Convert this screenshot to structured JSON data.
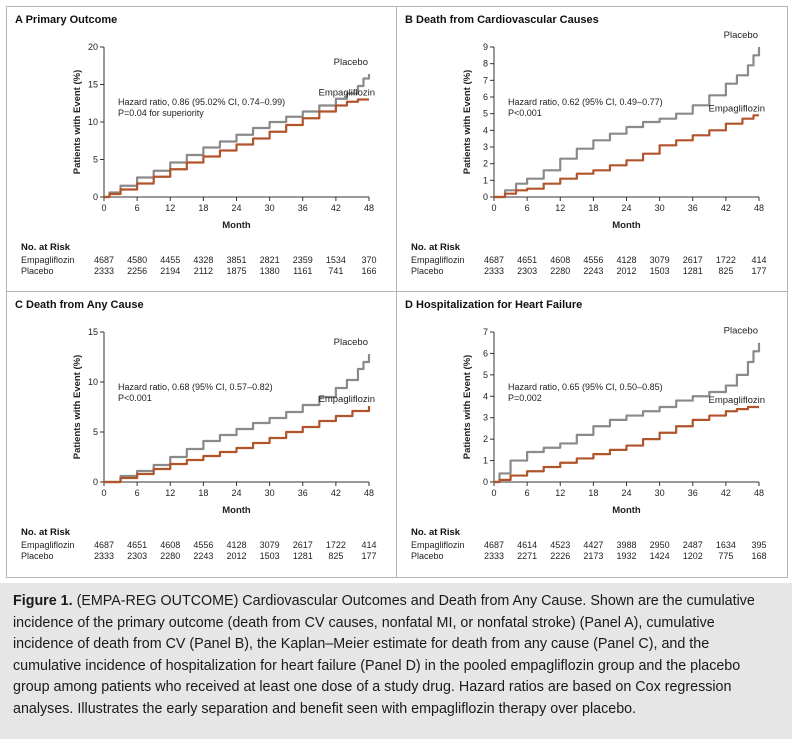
{
  "caption": {
    "label": "Figure 1.",
    "text": "(EMPA-REG OUTCOME) Cardiovascular Outcomes and Death from Any Cause. Shown are the cumulative incidence of the primary outcome (death from CV causes, nonfatal MI, or nonfatal stroke) (Panel A), cumulative incidence of death from CV (Panel B), the Kaplan–Meier estimate for death from any cause (Panel C), and the cumulative incidence of hospitalization for heart failure (Panel D) in the pooled empagliflozin group and the placebo group among patients who received at least one dose of a study drug. Hazard ratios are based on Cox regression analyses. Illustrates the early separation and benefit seen with empagliflozin therapy over placebo."
  },
  "colors": {
    "placebo": "#8a8a8a",
    "empagliflozin": "#b2542b",
    "axis": "#333333"
  },
  "chart_data": [
    {
      "type": "line",
      "title": "A  Primary Outcome",
      "ylabel": "Patients with Event (%)",
      "xlabel": "Month",
      "ylim": [
        0,
        20
      ],
      "yticks": [
        0,
        5,
        10,
        15,
        20
      ],
      "xlim": [
        0,
        48
      ],
      "xticks": [
        0,
        6,
        12,
        18,
        24,
        30,
        36,
        42,
        48
      ],
      "annotation": [
        "Hazard ratio, 0.86 (95.02% CI, 0.74–0.99)",
        "P=0.04 for superiority"
      ],
      "series": [
        {
          "name": "Placebo",
          "x": [
            0,
            1,
            3,
            6,
            9,
            12,
            15,
            18,
            21,
            24,
            27,
            30,
            33,
            36,
            39,
            42,
            44,
            46,
            47,
            48
          ],
          "values": [
            0,
            0.6,
            1.5,
            2.6,
            3.5,
            4.6,
            5.6,
            6.6,
            7.4,
            8.3,
            9.2,
            10.0,
            10.7,
            11.4,
            12.2,
            13.1,
            13.8,
            14.8,
            15.8,
            16.4
          ]
        },
        {
          "name": "Empagliflozin",
          "x": [
            0,
            1,
            3,
            6,
            9,
            12,
            15,
            18,
            21,
            24,
            27,
            30,
            33,
            36,
            39,
            42,
            44,
            46,
            48
          ],
          "values": [
            0,
            0.4,
            1.0,
            1.8,
            2.7,
            3.7,
            4.6,
            5.4,
            6.2,
            7.0,
            7.8,
            8.7,
            9.6,
            10.5,
            11.4,
            12.2,
            12.7,
            13.0,
            13.0
          ]
        }
      ],
      "risk_table": {
        "header": "No. at Risk",
        "rows": [
          {
            "name": "Empagliflozin",
            "values": [
              "4687",
              "4580",
              "4455",
              "4328",
              "3851",
              "2821",
              "2359",
              "1534",
              "370"
            ]
          },
          {
            "name": "Placebo",
            "values": [
              "2333",
              "2256",
              "2194",
              "2112",
              "1875",
              "1380",
              "1161",
              "741",
              "166"
            ]
          }
        ]
      }
    },
    {
      "type": "line",
      "title": "B  Death from Cardiovascular Causes",
      "ylabel": "Patients with Event (%)",
      "xlabel": "Month",
      "ylim": [
        0,
        9
      ],
      "yticks": [
        0,
        1,
        2,
        3,
        4,
        5,
        6,
        7,
        8,
        9
      ],
      "xlim": [
        0,
        48
      ],
      "xticks": [
        0,
        6,
        12,
        18,
        24,
        30,
        36,
        42,
        48
      ],
      "annotation": [
        "Hazard ratio, 0.62 (95% CI, 0.49–0.77)",
        "P<0.001"
      ],
      "series": [
        {
          "name": "Placebo",
          "x": [
            0,
            2,
            4,
            6,
            9,
            12,
            15,
            18,
            21,
            24,
            27,
            30,
            33,
            36,
            39,
            42,
            44,
            46,
            47,
            48
          ],
          "values": [
            0,
            0.4,
            0.8,
            1.1,
            1.6,
            2.3,
            2.9,
            3.4,
            3.8,
            4.2,
            4.5,
            4.7,
            5.0,
            5.5,
            6.1,
            6.8,
            7.3,
            7.9,
            8.5,
            9.0
          ]
        },
        {
          "name": "Empagliflozin",
          "x": [
            0,
            2,
            4,
            6,
            9,
            12,
            15,
            18,
            21,
            24,
            27,
            30,
            33,
            36,
            39,
            42,
            45,
            47,
            48
          ],
          "values": [
            0,
            0.2,
            0.4,
            0.5,
            0.8,
            1.1,
            1.4,
            1.6,
            1.9,
            2.2,
            2.6,
            3.1,
            3.4,
            3.7,
            4.0,
            4.4,
            4.7,
            4.9,
            4.9
          ]
        }
      ],
      "risk_table": {
        "header": "No. at Risk",
        "rows": [
          {
            "name": "Empagliflozin",
            "values": [
              "4687",
              "4651",
              "4608",
              "4556",
              "4128",
              "3079",
              "2617",
              "1722",
              "414"
            ]
          },
          {
            "name": "Placebo",
            "values": [
              "2333",
              "2303",
              "2280",
              "2243",
              "2012",
              "1503",
              "1281",
              "825",
              "177"
            ]
          }
        ]
      }
    },
    {
      "type": "line",
      "title": "C  Death from Any Cause",
      "ylabel": "Patients with Event (%)",
      "xlabel": "Month",
      "ylim": [
        0,
        15
      ],
      "yticks": [
        0,
        5,
        10,
        15
      ],
      "xlim": [
        0,
        48
      ],
      "xticks": [
        0,
        6,
        12,
        18,
        24,
        30,
        36,
        42,
        48
      ],
      "annotation": [
        "Hazard ratio, 0.68 (95% CI, 0.57–0.82)",
        "P<0.001"
      ],
      "series": [
        {
          "name": "Placebo",
          "x": [
            0,
            3,
            6,
            9,
            12,
            15,
            18,
            21,
            24,
            27,
            30,
            33,
            36,
            39,
            42,
            44,
            46,
            47,
            48
          ],
          "values": [
            0,
            0.6,
            1.1,
            1.7,
            2.5,
            3.3,
            4.1,
            4.7,
            5.3,
            5.9,
            6.4,
            7.0,
            7.7,
            8.5,
            9.4,
            10.2,
            11.3,
            12.0,
            12.8
          ]
        },
        {
          "name": "Empagliflozin",
          "x": [
            0,
            3,
            6,
            9,
            12,
            15,
            18,
            21,
            24,
            27,
            30,
            33,
            36,
            39,
            42,
            45,
            48
          ],
          "values": [
            0,
            0.4,
            0.8,
            1.3,
            1.8,
            2.2,
            2.6,
            3.0,
            3.4,
            3.9,
            4.4,
            5.0,
            5.5,
            6.1,
            6.6,
            7.1,
            7.6
          ]
        }
      ],
      "risk_table": {
        "header": "No. at Risk",
        "rows": [
          {
            "name": "Empagliflozin",
            "values": [
              "4687",
              "4651",
              "4608",
              "4556",
              "4128",
              "3079",
              "2617",
              "1722",
              "414"
            ]
          },
          {
            "name": "Placebo",
            "values": [
              "2333",
              "2303",
              "2280",
              "2243",
              "2012",
              "1503",
              "1281",
              "825",
              "177"
            ]
          }
        ]
      }
    },
    {
      "type": "line",
      "title": "D  Hospitalization for Heart Failure",
      "ylabel": "Patients with Event (%)",
      "xlabel": "Month",
      "ylim": [
        0,
        7
      ],
      "yticks": [
        0,
        1,
        2,
        3,
        4,
        5,
        6,
        7
      ],
      "xlim": [
        0,
        48
      ],
      "xticks": [
        0,
        6,
        12,
        18,
        24,
        30,
        36,
        42,
        48
      ],
      "annotation": [
        "Hazard ratio, 0.65 (95% CI, 0.50–0.85)",
        "P=0.002"
      ],
      "series": [
        {
          "name": "Placebo",
          "x": [
            0,
            1,
            3,
            6,
            9,
            12,
            15,
            18,
            21,
            24,
            27,
            30,
            33,
            36,
            39,
            42,
            44,
            46,
            47,
            48
          ],
          "values": [
            0,
            0.4,
            1.0,
            1.4,
            1.6,
            1.8,
            2.2,
            2.6,
            2.9,
            3.1,
            3.3,
            3.5,
            3.8,
            4.0,
            4.2,
            4.5,
            5.0,
            5.6,
            6.1,
            6.5
          ]
        },
        {
          "name": "Empagliflozin",
          "x": [
            0,
            1,
            3,
            6,
            9,
            12,
            15,
            18,
            21,
            24,
            27,
            30,
            33,
            36,
            39,
            42,
            44,
            46,
            48
          ],
          "values": [
            0,
            0.1,
            0.3,
            0.5,
            0.7,
            0.9,
            1.1,
            1.3,
            1.5,
            1.7,
            2.0,
            2.3,
            2.6,
            2.9,
            3.1,
            3.3,
            3.4,
            3.5,
            3.5
          ]
        }
      ],
      "risk_table": {
        "header": "No. at Risk",
        "rows": [
          {
            "name": "Empagliflozin",
            "values": [
              "4687",
              "4614",
              "4523",
              "4427",
              "3988",
              "2950",
              "2487",
              "1634",
              "395"
            ]
          },
          {
            "name": "Placebo",
            "values": [
              "2333",
              "2271",
              "2226",
              "2173",
              "1932",
              "1424",
              "1202",
              "775",
              "168"
            ]
          }
        ]
      }
    }
  ]
}
